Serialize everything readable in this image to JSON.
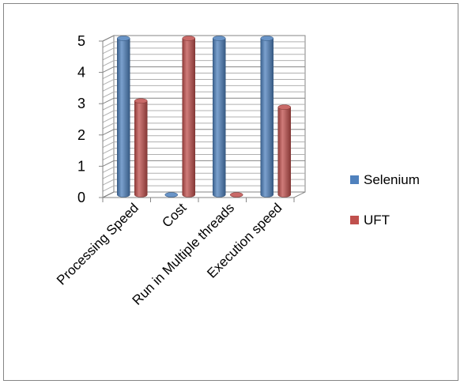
{
  "chart_data": {
    "type": "bar",
    "style": "3d-cylinder",
    "categories": [
      "Processing Speed",
      "Cost",
      "Run in Multiple threads",
      "Execution speed"
    ],
    "series": [
      {
        "name": "Selenium",
        "values": [
          5,
          0,
          5,
          5
        ],
        "color": "#4F81BD"
      },
      {
        "name": "UFT",
        "values": [
          3,
          5,
          0,
          2.8
        ],
        "color": "#C0504D"
      }
    ],
    "y_ticks": [
      "0",
      "1",
      "2",
      "3",
      "4",
      "5"
    ],
    "ylim": [
      0,
      5
    ],
    "grid": true,
    "legend_position": "right"
  }
}
